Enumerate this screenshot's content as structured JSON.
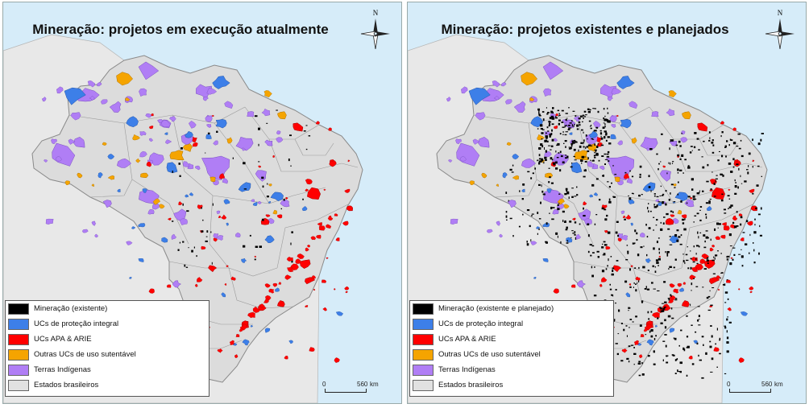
{
  "panels": [
    {
      "title": "Mineração: projetos em execução atualmente",
      "legend": [
        {
          "label": "Mineração (existente)",
          "color": "#000000"
        },
        {
          "label": "UCs de proteção integral",
          "color": "#3d7fe8"
        },
        {
          "label": "UCs APA & ARIE",
          "color": "#ff0000"
        },
        {
          "label": "Outras UCs de uso sutentável",
          "color": "#f5a400"
        },
        {
          "label": "Terras Indígenas",
          "color": "#b07ef5"
        },
        {
          "label": "Estados brasileiros",
          "color": "#e1e1e1"
        }
      ],
      "scale": {
        "start": "0",
        "end": "560",
        "unit": "km"
      },
      "north": "N",
      "mining_density": "low"
    },
    {
      "title": "Mineração: projetos existentes e planejados",
      "legend": [
        {
          "label": "Mineração (existente e planejado)",
          "color": "#000000"
        },
        {
          "label": "UCs de proteção integral",
          "color": "#3d7fe8"
        },
        {
          "label": "UCs APA & ARIE",
          "color": "#ff0000"
        },
        {
          "label": "Outras UCs de uso sutentável",
          "color": "#f5a400"
        },
        {
          "label": "Terras Indígenas",
          "color": "#b07ef5"
        },
        {
          "label": "Estados brasileiros",
          "color": "#e1e1e1"
        }
      ],
      "scale": {
        "start": "0",
        "end": "560",
        "unit": "km"
      },
      "north": "N",
      "mining_density": "high"
    }
  ],
  "colors": {
    "ocean": "#d6ecf9",
    "land_outside": "#e6e6e6",
    "brazil": "#dcdcdc",
    "state_border": "#8c8c8c"
  }
}
